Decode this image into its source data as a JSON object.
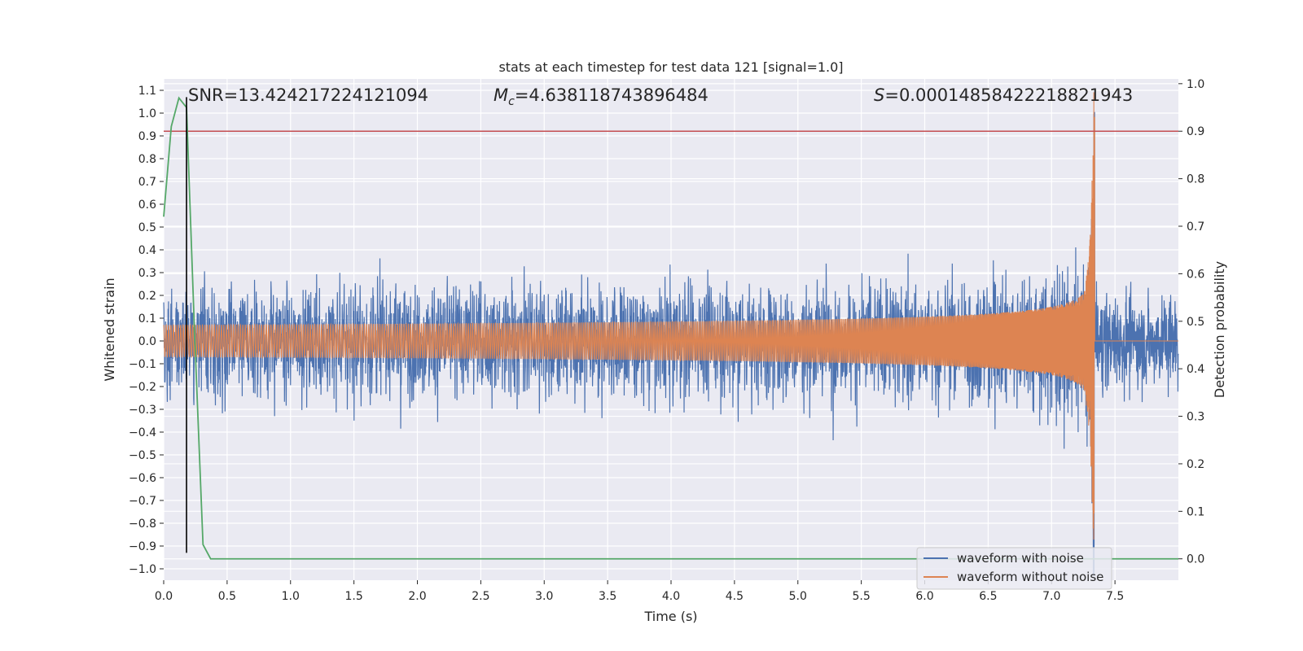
{
  "chart_data": {
    "type": "line",
    "title": "stats at each timestep for test data 121 [signal=1.0]",
    "xlabel": "Time (s)",
    "ylabel": "Whitened strain",
    "y2label": "Detection probability",
    "xlim": [
      0.0,
      8.0
    ],
    "ylim": [
      -1.05,
      1.15
    ],
    "y2lim": [
      -0.045,
      1.01
    ],
    "x_ticks": [
      0.0,
      0.5,
      1.0,
      1.5,
      2.0,
      2.5,
      3.0,
      3.5,
      4.0,
      4.5,
      5.0,
      5.5,
      6.0,
      6.5,
      7.0,
      7.5
    ],
    "x_tick_labels": [
      "0.0",
      "0.5",
      "1.0",
      "1.5",
      "2.0",
      "2.5",
      "3.0",
      "3.5",
      "4.0",
      "4.5",
      "5.0",
      "5.5",
      "6.0",
      "6.5",
      "7.0",
      "7.5"
    ],
    "y_ticks": [
      1.1,
      1.0,
      0.9,
      0.8,
      0.7,
      0.6,
      0.5,
      0.4,
      0.3,
      0.2,
      0.1,
      0.0,
      -0.1,
      -0.2,
      -0.3,
      -0.4,
      -0.5,
      -0.6,
      -0.7,
      -0.8,
      -0.9,
      -1.0
    ],
    "y_tick_labels": [
      "1.1",
      "1.0",
      "0.9",
      "0.8",
      "0.7",
      "0.6",
      "0.5",
      "0.4",
      "0.3",
      "0.2",
      "0.1",
      "0.0",
      "−0.1",
      "−0.2",
      "−0.3",
      "−0.4",
      "−0.5",
      "−0.6",
      "−0.7",
      "−0.8",
      "−0.9",
      "−1.0"
    ],
    "y2_ticks": [
      1.0,
      0.9,
      0.8,
      0.7,
      0.6,
      0.5,
      0.4,
      0.3,
      0.2,
      0.1,
      0.0
    ],
    "y2_tick_labels": [
      "1.0",
      "0.9",
      "0.8",
      "0.7",
      "0.6",
      "0.5",
      "0.4",
      "0.3",
      "0.2",
      "0.1",
      "0.0"
    ],
    "annotations": {
      "snr": "SNR=13.424217224121094",
      "mc_symbol": "M",
      "mc_sub": "c",
      "mc_value": "=4.638118743896484",
      "s_symbol": "S",
      "s_value": "=0.00014858422218821943"
    },
    "grid": true,
    "legend_position": "lower-right",
    "colors": {
      "background": "#eaeaf2",
      "grid": "#ffffff",
      "noise": "#4c72b0",
      "clean": "#dd8452",
      "probability": "#55a868",
      "threshold": "#c44e52",
      "marker": "#000000"
    },
    "series": [
      {
        "name": "waveform with noise",
        "description_values": {
          "x_start": 0.0,
          "x_end": 8.0,
          "noise_envelope_before_merger": 0.43,
          "peak_near_merger_x": 7.3,
          "peak_max": 1.09,
          "peak_min": -0.98,
          "post_merger_envelope": 0.41
        }
      },
      {
        "name": "waveform without noise",
        "description_values": {
          "x_start": 0.0,
          "x_end": 8.0,
          "chirp_amplitude_start": 0.07,
          "merger_x": 7.34,
          "merger_amplitude": 1.1,
          "post_merger_value": 0.0
        }
      },
      {
        "name": "",
        "axis": "y2",
        "x": [
          0.0,
          0.06,
          0.12,
          0.18,
          0.24,
          0.31,
          0.37,
          0.43,
          8.0
        ],
        "values": [
          0.72,
          0.91,
          0.97,
          0.95,
          0.5,
          0.03,
          0.0,
          0.0,
          0.0
        ]
      }
    ],
    "threshold_y2": 0.9,
    "marker_x": 0.18,
    "marker_y_range": [
      -0.93,
      1.07
    ]
  }
}
